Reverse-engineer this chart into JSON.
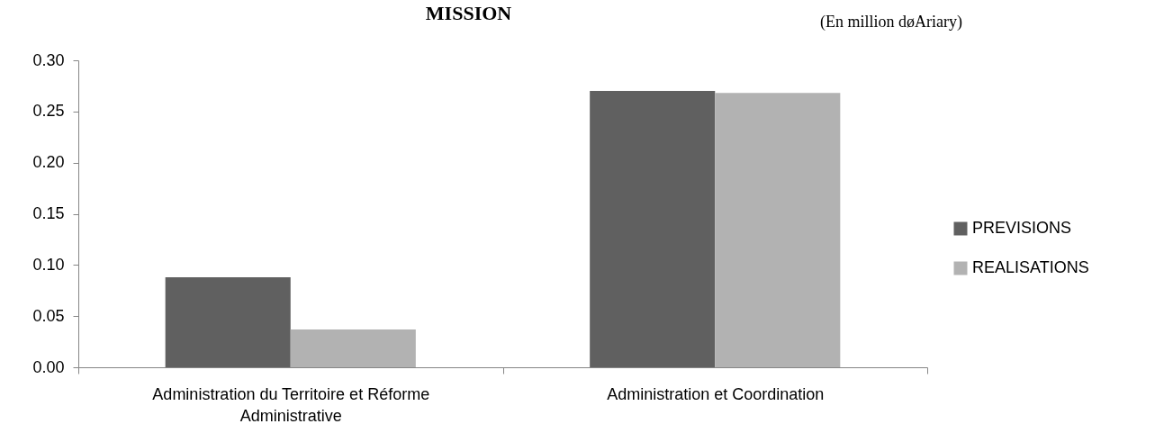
{
  "chart_data": {
    "type": "bar",
    "title": "MISSION",
    "annotations": [
      "(En million døAriary)"
    ],
    "categories": [
      "Administration du Territoire et Réforme Administrative",
      "Administration et Coordination"
    ],
    "series": [
      {
        "name": "PREVISIONS",
        "color": "#606060",
        "values": [
          0.088,
          0.27
        ]
      },
      {
        "name": "REALISATIONS",
        "color": "#b2b2b2",
        "values": [
          0.037,
          0.268
        ]
      }
    ],
    "ylim": [
      0,
      0.3
    ],
    "yticks": [
      {
        "value": 0,
        "label": "0.00"
      },
      {
        "value": 0.05,
        "label": "0.05"
      },
      {
        "value": 0.1,
        "label": "0.10"
      },
      {
        "value": 0.15,
        "label": "0.15"
      },
      {
        "value": 0.2,
        "label": "0.20"
      },
      {
        "value": 0.25,
        "label": "0.25"
      },
      {
        "value": 0.3,
        "label": "0.30"
      }
    ],
    "grid": false,
    "legend": "right"
  }
}
